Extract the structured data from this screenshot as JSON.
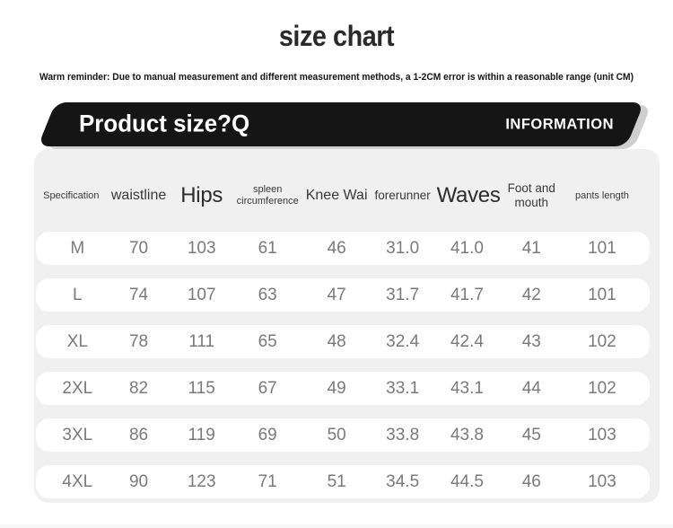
{
  "page": {
    "title": "size chart",
    "reminder": "Warm reminder: Due to manual measurement and different measurement methods, a 1-2CM error is within a reasonable range (unit CM)"
  },
  "banner": {
    "left_label": "Product size?Q",
    "right_label": "INFORMATION"
  },
  "table": {
    "headers": [
      "Specification",
      "waistline",
      "Hips",
      "spleen circumference",
      "Knee Wai",
      "forerunner",
      "Waves",
      "Foot and mouth",
      "pants length"
    ],
    "rows": [
      {
        "cells": [
          "M",
          "70",
          "103",
          "61",
          "46",
          "31.0",
          "41.0",
          "41",
          "101"
        ]
      },
      {
        "cells": [
          "L",
          "74",
          "107",
          "63",
          "47",
          "31.7",
          "41.7",
          "42",
          "101"
        ]
      },
      {
        "cells": [
          "XL",
          "78",
          "111",
          "65",
          "48",
          "32.4",
          "42.4",
          "43",
          "102"
        ]
      },
      {
        "cells": [
          "2XL",
          "82",
          "115",
          "67",
          "49",
          "33.1",
          "43.1",
          "44",
          "102"
        ]
      },
      {
        "cells": [
          "3XL",
          "86",
          "119",
          "69",
          "50",
          "33.8",
          "43.8",
          "45",
          "103"
        ]
      },
      {
        "cells": [
          "4XL",
          "90",
          "123",
          "71",
          "51",
          "34.5",
          "44.5",
          "46",
          "103"
        ]
      }
    ]
  },
  "colors": {
    "banner_background": "#151515",
    "banner_text": "#ffffff",
    "card_background": "#f0f0f1",
    "row_background": "#ffffff",
    "heading_text": "#2c2c2c",
    "value_text": "#7a7a7a"
  },
  "chart_data": {
    "type": "table",
    "title": "size chart",
    "unit": "CM",
    "columns": [
      "Specification",
      "waistline",
      "Hips",
      "spleen circumference",
      "Knee Wai",
      "forerunner",
      "Waves",
      "Foot and mouth",
      "pants length"
    ],
    "rows": [
      [
        "M",
        70,
        103,
        61,
        46,
        31.0,
        41.0,
        41,
        101
      ],
      [
        "L",
        74,
        107,
        63,
        47,
        31.7,
        41.7,
        42,
        101
      ],
      [
        "XL",
        78,
        111,
        65,
        48,
        32.4,
        42.4,
        43,
        102
      ],
      [
        "2XL",
        82,
        115,
        67,
        49,
        33.1,
        43.1,
        44,
        102
      ],
      [
        "3XL",
        86,
        119,
        69,
        50,
        33.8,
        43.8,
        45,
        103
      ],
      [
        "4XL",
        90,
        123,
        71,
        51,
        34.5,
        44.5,
        46,
        103
      ]
    ]
  }
}
